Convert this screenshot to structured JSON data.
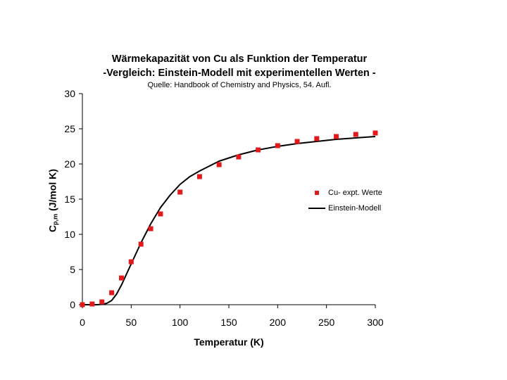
{
  "chart_data": {
    "type": "scatter",
    "title": "Wärmekapazität von Cu als Funktion der Temperatur",
    "subtitle": "-Vergleich: Einstein-Modell mit experimentellen Werten -",
    "source": "Quelle: Handbook of Chemistry and Physics, 54. Aufl.",
    "xlabel": "Temperatur (K)",
    "ylabel": {
      "main": "C",
      "sub": "p,m",
      "unit": " (J/mol K)"
    },
    "xlim": [
      0,
      300
    ],
    "ylim": [
      0,
      30
    ],
    "xticks": [
      "0",
      "50",
      "100",
      "150",
      "200",
      "250",
      "300"
    ],
    "yticks": [
      "0",
      "5",
      "10",
      "15",
      "20",
      "25",
      "30"
    ],
    "grid": false,
    "legend_position": "right",
    "colors": {
      "experimental": "#e31a1c",
      "model": "#000000"
    },
    "series": [
      {
        "name": "Cu- expt. Werte",
        "kind": "markers",
        "x": [
          0,
          10,
          20,
          30,
          40,
          50,
          60,
          70,
          80,
          100,
          120,
          140,
          160,
          180,
          200,
          220,
          240,
          260,
          280,
          300
        ],
        "y": [
          0.0,
          0.1,
          0.4,
          1.7,
          3.8,
          6.1,
          8.6,
          10.8,
          12.9,
          16.0,
          18.2,
          19.9,
          21.0,
          22.0,
          22.6,
          23.2,
          23.6,
          23.9,
          24.2,
          24.4
        ]
      },
      {
        "name": "Einstein-Modell",
        "kind": "line",
        "x": [
          0,
          15,
          20,
          25,
          30,
          35,
          40,
          50,
          60,
          70,
          80,
          90,
          100,
          110,
          120,
          140,
          160,
          180,
          200,
          220,
          240,
          260,
          280,
          300
        ],
        "y": [
          0.0,
          0.0,
          0.05,
          0.2,
          0.6,
          1.5,
          2.8,
          5.8,
          8.8,
          11.5,
          13.8,
          15.6,
          17.1,
          18.2,
          19.0,
          20.4,
          21.3,
          22.0,
          22.5,
          22.9,
          23.2,
          23.5,
          23.7,
          23.9
        ]
      }
    ]
  }
}
